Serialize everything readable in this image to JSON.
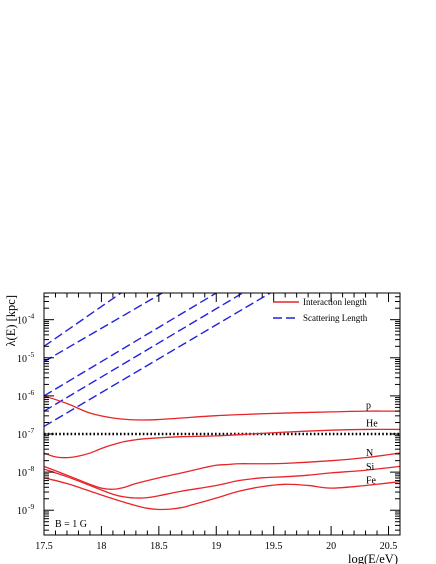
{
  "chart_data": {
    "type": "line",
    "xlabel": "log(E/eV)",
    "ylabel": "λ(E)  [kpc]",
    "xlim": [
      17.5,
      20.6
    ],
    "ylim_log10": [
      -9.65,
      -3.3
    ],
    "log_scale_y": true,
    "grid": false,
    "legend_position": "top-right",
    "x_ticks": [
      "17.5",
      "18",
      "18.5",
      "19",
      "19.5",
      "20",
      "20.5"
    ],
    "y_ticks": [
      {
        "exp": -9,
        "label_base": "10",
        "label_exp": "-9"
      },
      {
        "exp": -8,
        "label_base": "10",
        "label_exp": "-8"
      },
      {
        "exp": -7,
        "label_base": "10",
        "label_exp": "-7"
      },
      {
        "exp": -6,
        "label_base": "10",
        "label_exp": "-6"
      },
      {
        "exp": -5,
        "label_base": "10",
        "label_exp": "-5"
      },
      {
        "exp": -4,
        "label_base": "10",
        "label_exp": "-4"
      }
    ],
    "legend": [
      {
        "label": "Interaction length",
        "style": "solid",
        "color": "#e8252a"
      },
      {
        "label": "Scattering Length",
        "style": "dashed",
        "color": "#2222dd"
      }
    ],
    "annotation": "B = 1 G",
    "reference_line": {
      "log10_y": -7,
      "color": "#000000",
      "style": "dotted"
    },
    "interaction_series": [
      {
        "name": "p",
        "color": "#e8252a",
        "x": [
          17.5,
          17.7,
          17.9,
          18.1,
          18.3,
          18.5,
          18.7,
          19.0,
          19.3,
          19.6,
          20.0,
          20.3,
          20.6
        ],
        "log10_y": [
          -6.0,
          -6.2,
          -6.45,
          -6.58,
          -6.63,
          -6.62,
          -6.58,
          -6.52,
          -6.48,
          -6.45,
          -6.42,
          -6.4,
          -6.4
        ]
      },
      {
        "name": "He",
        "color": "#e8252a",
        "x": [
          17.5,
          17.6,
          17.7,
          17.8,
          17.9,
          18.0,
          18.1,
          18.2,
          18.3,
          18.4,
          18.5,
          18.7,
          19.0,
          19.3,
          19.6,
          20.0,
          20.3,
          20.6
        ],
        "log10_y": [
          -7.5,
          -7.6,
          -7.62,
          -7.58,
          -7.5,
          -7.38,
          -7.28,
          -7.2,
          -7.15,
          -7.12,
          -7.1,
          -7.07,
          -7.05,
          -7.0,
          -6.95,
          -6.9,
          -6.88,
          -6.88
        ]
      },
      {
        "name": "N",
        "color": "#e8252a",
        "x": [
          17.5,
          17.7,
          17.9,
          18.0,
          18.1,
          18.2,
          18.3,
          18.5,
          18.7,
          18.9,
          19.0,
          19.1,
          19.2,
          19.4,
          19.6,
          20.0,
          20.3,
          20.6
        ],
        "log10_y": [
          -7.85,
          -8.08,
          -8.32,
          -8.42,
          -8.45,
          -8.4,
          -8.3,
          -8.15,
          -8.02,
          -7.88,
          -7.82,
          -7.8,
          -7.78,
          -7.78,
          -7.77,
          -7.7,
          -7.62,
          -7.5
        ]
      },
      {
        "name": "Si",
        "color": "#e8252a",
        "x": [
          17.5,
          17.7,
          17.9,
          18.1,
          18.2,
          18.3,
          18.4,
          18.5,
          18.7,
          19.0,
          19.2,
          19.4,
          19.6,
          19.8,
          20.0,
          20.3,
          20.6
        ],
        "log10_y": [
          -7.92,
          -8.12,
          -8.35,
          -8.58,
          -8.65,
          -8.68,
          -8.67,
          -8.62,
          -8.5,
          -8.35,
          -8.22,
          -8.15,
          -8.12,
          -8.08,
          -8.02,
          -7.95,
          -7.85
        ]
      },
      {
        "name": "Fe",
        "color": "#e8252a",
        "x": [
          17.5,
          17.7,
          17.9,
          18.1,
          18.3,
          18.4,
          18.5,
          18.6,
          18.7,
          18.8,
          19.0,
          19.2,
          19.4,
          19.6,
          19.8,
          20.0,
          20.3,
          20.6
        ],
        "log10_y": [
          -8.15,
          -8.3,
          -8.5,
          -8.7,
          -8.88,
          -8.95,
          -8.98,
          -8.97,
          -8.93,
          -8.85,
          -8.68,
          -8.5,
          -8.38,
          -8.32,
          -8.35,
          -8.42,
          -8.35,
          -8.25
        ]
      }
    ],
    "scattering_series": [
      {
        "color": "#2222dd",
        "x": [
          17.5,
          18.17
        ],
        "log10_y": [
          -4.7,
          -3.3
        ]
      },
      {
        "color": "#2222dd",
        "x": [
          17.5,
          18.53
        ],
        "log10_y": [
          -5.1,
          -3.3
        ]
      },
      {
        "color": "#2222dd",
        "x": [
          17.5,
          19.0
        ],
        "log10_y": [
          -6.0,
          -3.3
        ]
      },
      {
        "color": "#2222dd",
        "x": [
          17.5,
          19.23
        ],
        "log10_y": [
          -6.4,
          -3.3
        ]
      },
      {
        "color": "#2222dd",
        "x": [
          17.5,
          19.47
        ],
        "log10_y": [
          -6.8,
          -3.3
        ]
      }
    ]
  }
}
